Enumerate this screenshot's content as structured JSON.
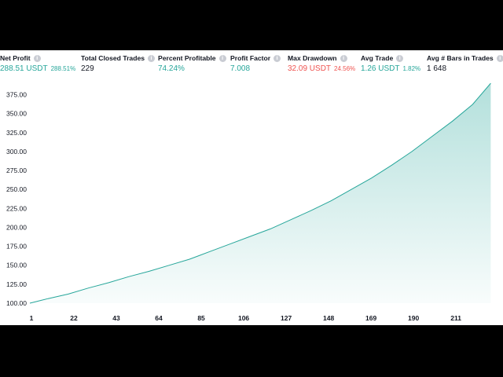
{
  "metrics": [
    {
      "label": "Net Profit",
      "value": "288.51 USDT",
      "sub": "288.51%",
      "tone": "pos",
      "sub_tone": "pos"
    },
    {
      "label": "Total Closed Trades",
      "value": "229",
      "sub": "",
      "tone": "neutral",
      "sub_tone": "neutral"
    },
    {
      "label": "Percent Profitable",
      "value": "74.24%",
      "sub": "",
      "tone": "pos",
      "sub_tone": "pos"
    },
    {
      "label": "Profit Factor",
      "value": "7.008",
      "sub": "",
      "tone": "pos",
      "sub_tone": "pos"
    },
    {
      "label": "Max Drawdown",
      "value": "32.09 USDT",
      "sub": "24.56%",
      "tone": "neg",
      "sub_tone": "neg"
    },
    {
      "label": "Avg Trade",
      "value": "1.26 USDT",
      "sub": "1.82%",
      "tone": "pos",
      "sub_tone": "pos"
    },
    {
      "label": "Avg # Bars in Trades",
      "value": "1 648",
      "sub": "",
      "tone": "neutral",
      "sub_tone": "neutral"
    }
  ],
  "icons": {
    "info": "info-icon"
  },
  "colors": {
    "line": "#26a69a",
    "positive": "#26a69a",
    "negative": "#ef5350"
  },
  "chart_data": {
    "type": "area",
    "title": "",
    "xlabel": "",
    "ylabel": "",
    "x_ticks": [
      1,
      22,
      43,
      64,
      85,
      106,
      127,
      148,
      169,
      190,
      211
    ],
    "y_ticks": [
      "100.00",
      "125.00",
      "150.00",
      "175.00",
      "200.00",
      "225.00",
      "250.00",
      "275.00",
      "300.00",
      "325.00",
      "350.00",
      "375.00"
    ],
    "xlim": [
      1,
      230
    ],
    "ylim": [
      100,
      390
    ],
    "grid": false,
    "series": [
      {
        "name": "",
        "points": [
          [
            1,
            100
          ],
          [
            10,
            106
          ],
          [
            20,
            112
          ],
          [
            30,
            120
          ],
          [
            40,
            127
          ],
          [
            50,
            135
          ],
          [
            60,
            142
          ],
          [
            70,
            150
          ],
          [
            80,
            158
          ],
          [
            90,
            168
          ],
          [
            100,
            178
          ],
          [
            110,
            188
          ],
          [
            120,
            198
          ],
          [
            130,
            210
          ],
          [
            140,
            222
          ],
          [
            150,
            235
          ],
          [
            160,
            250
          ],
          [
            170,
            265
          ],
          [
            180,
            282
          ],
          [
            190,
            300
          ],
          [
            200,
            320
          ],
          [
            210,
            340
          ],
          [
            220,
            362
          ],
          [
            229,
            390
          ]
        ]
      }
    ]
  }
}
